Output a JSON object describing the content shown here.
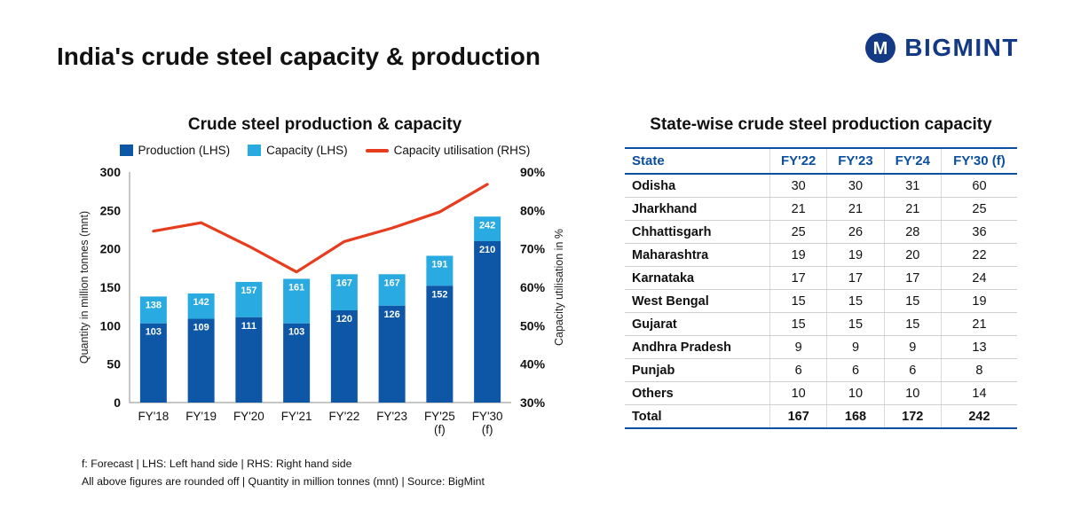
{
  "page": {
    "title": "India's crude steel capacity & production"
  },
  "brand": {
    "name": "BIGMINT",
    "color": "#143a85"
  },
  "chart": {
    "footnotes": [
      "f: Forecast | LHS: Left hand side | RHS: Right hand side",
      "All above figures are rounded off | Quantity in million tonnes (mnt) | Source: BigMint"
    ]
  },
  "chart_data": {
    "type": "bar",
    "title": "Crude steel production & capacity",
    "categories": [
      "FY'18",
      "FY'19",
      "FY'20",
      "FY'21",
      "FY'22",
      "FY'23",
      "FY'25 (f)",
      "FY'30 (f)"
    ],
    "series": [
      {
        "name": "Production (LHS)",
        "color": "#0d57a6",
        "values": [
          103,
          109,
          111,
          103,
          120,
          126,
          152,
          210
        ]
      },
      {
        "name": "Capacity (LHS)",
        "color": "#29aae1",
        "values": [
          138,
          142,
          157,
          161,
          167,
          167,
          191,
          242
        ]
      }
    ],
    "line": {
      "name": "Capacity utilisation (RHS)",
      "color": "#e83c1e",
      "values": [
        74.6,
        76.8,
        70.7,
        64,
        71.9,
        75.4,
        79.6,
        86.8
      ]
    },
    "left_axis": {
      "label": "Quantity in million tonnes (mnt)",
      "min": 0,
      "max": 300,
      "step": 50
    },
    "right_axis": {
      "label": "Capacity utilisation in %",
      "min": 30,
      "max": 90,
      "step": 10,
      "suffix": "%"
    },
    "legend_position": "top",
    "grid": false
  },
  "table": {
    "title": "State-wise crude steel production capacity",
    "headers": [
      "State",
      "FY'22",
      "FY'23",
      "FY'24",
      "FY'30 (f)"
    ],
    "rows": [
      {
        "state": "Odisha",
        "values": [
          30,
          30,
          31,
          60
        ]
      },
      {
        "state": "Jharkhand",
        "values": [
          21,
          21,
          21,
          25
        ]
      },
      {
        "state": "Chhattisgarh",
        "values": [
          25,
          26,
          28,
          36
        ]
      },
      {
        "state": "Maharashtra",
        "values": [
          19,
          19,
          20,
          22
        ]
      },
      {
        "state": "Karnataka",
        "values": [
          17,
          17,
          17,
          24
        ]
      },
      {
        "state": "West Bengal",
        "values": [
          15,
          15,
          15,
          19
        ]
      },
      {
        "state": "Gujarat",
        "values": [
          15,
          15,
          15,
          21
        ]
      },
      {
        "state": "Andhra Pradesh",
        "values": [
          9,
          9,
          9,
          13
        ]
      },
      {
        "state": "Punjab",
        "values": [
          6,
          6,
          6,
          8
        ]
      },
      {
        "state": "Others",
        "values": [
          10,
          10,
          10,
          14
        ]
      }
    ],
    "total": {
      "state": "Total",
      "values": [
        167,
        168,
        172,
        242
      ]
    }
  }
}
